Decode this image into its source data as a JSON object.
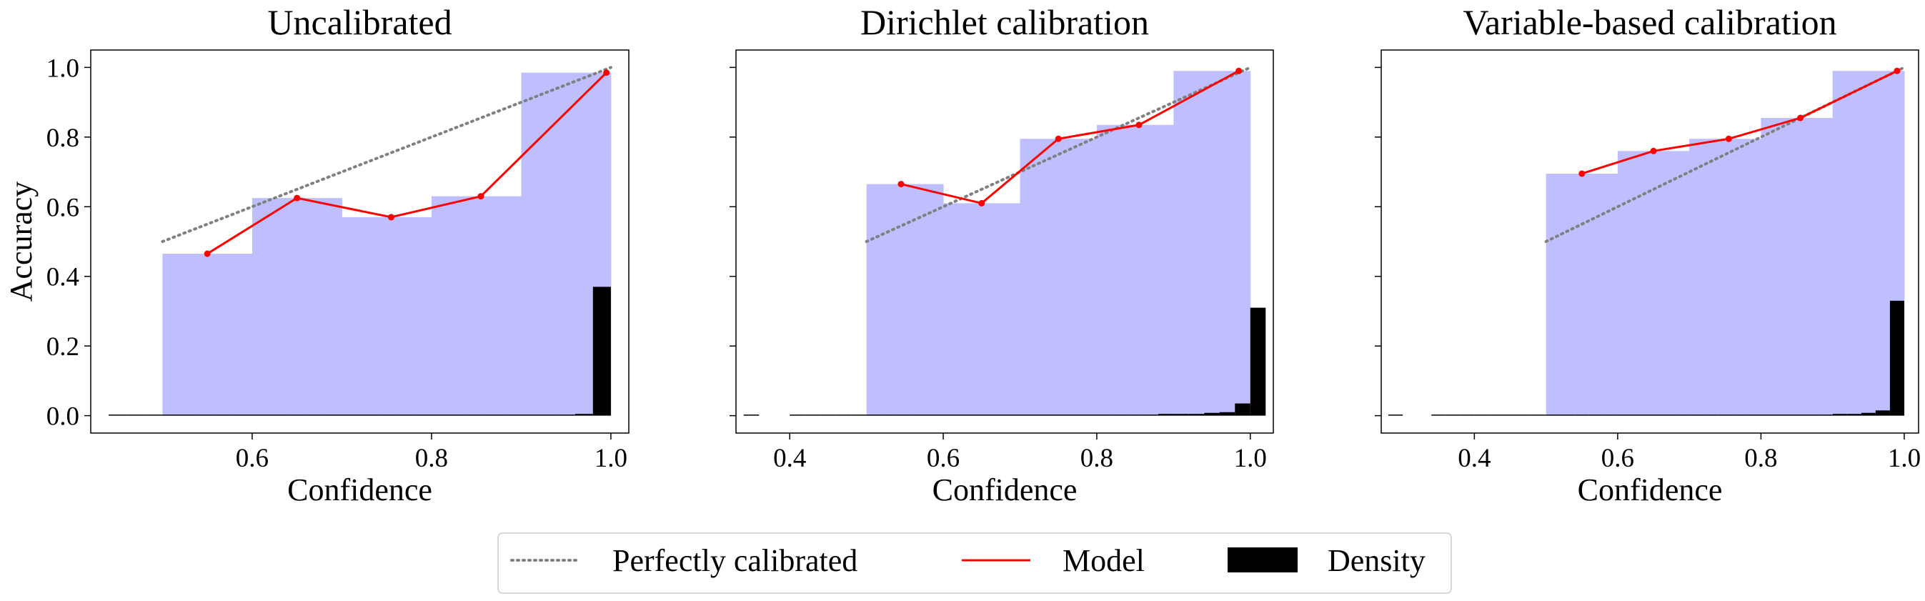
{
  "chart_data": [
    {
      "type": "bar",
      "title": "Uncalibrated",
      "xlabel": "Confidence",
      "ylabel": "Accuracy",
      "xlim": [
        0.42,
        1.02
      ],
      "ylim": [
        -0.05,
        1.05
      ],
      "xticks": [
        0.6,
        0.8,
        1.0
      ],
      "xtick_labels": [
        "0.6",
        "0.8",
        "1.0"
      ],
      "yticks": [
        0.0,
        0.2,
        0.4,
        0.6,
        0.8,
        1.0
      ],
      "ytick_labels": [
        "0.0",
        "0.2",
        "0.4",
        "0.6",
        "0.8",
        "1.0"
      ],
      "show_yticklabels": true,
      "accuracy_bins": {
        "edges": [
          0.5,
          0.6,
          0.7,
          0.8,
          0.9,
          1.0
        ],
        "values": [
          0.465,
          0.625,
          0.57,
          0.63,
          0.985
        ]
      },
      "model": {
        "name": "Model",
        "x": [
          0.55,
          0.65,
          0.755,
          0.855,
          0.995
        ],
        "y": [
          0.465,
          0.625,
          0.57,
          0.63,
          0.985
        ]
      },
      "perfect": {
        "name": "Perfectly calibrated",
        "x": [
          0.5,
          1.0
        ],
        "y": [
          0.5,
          1.0
        ]
      },
      "density": {
        "name": "Density",
        "bin_width": 0.02,
        "start": 0.44,
        "end": 1.0,
        "values": [
          0.003,
          0.003,
          0.003,
          0.003,
          0.003,
          0.003,
          0.003,
          0.003,
          0.003,
          0.003,
          0.003,
          0.003,
          0.003,
          0.003,
          0.003,
          0.003,
          0.003,
          0.003,
          0.003,
          0.003,
          0.003,
          0.003,
          0.003,
          0.003,
          0.003,
          0.003,
          0.005,
          0.37
        ]
      }
    },
    {
      "type": "bar",
      "title": "Dirichlet calibration",
      "xlabel": "Confidence",
      "ylabel": "",
      "xlim": [
        0.33,
        1.03
      ],
      "ylim": [
        -0.05,
        1.05
      ],
      "xticks": [
        0.4,
        0.6,
        0.8,
        1.0
      ],
      "xtick_labels": [
        "0.4",
        "0.6",
        "0.8",
        "1.0"
      ],
      "yticks": [
        0.0,
        0.2,
        0.4,
        0.6,
        0.8,
        1.0
      ],
      "ytick_labels": [],
      "show_yticklabels": false,
      "accuracy_bins": {
        "edges": [
          0.5,
          0.6,
          0.7,
          0.8,
          0.9,
          1.0
        ],
        "values": [
          0.665,
          0.61,
          0.795,
          0.835,
          0.99
        ]
      },
      "model": {
        "name": "Model",
        "x": [
          0.545,
          0.65,
          0.75,
          0.855,
          0.985
        ],
        "y": [
          0.665,
          0.61,
          0.795,
          0.835,
          0.99
        ]
      },
      "perfect": {
        "name": "Perfectly calibrated",
        "x": [
          0.5,
          1.0
        ],
        "y": [
          0.5,
          1.0
        ]
      },
      "density": {
        "name": "Density",
        "bin_width": 0.02,
        "start": 0.34,
        "end": 1.0,
        "values": [
          0.003,
          0.0,
          0.0,
          0.003,
          0.003,
          0.003,
          0.003,
          0.003,
          0.003,
          0.003,
          0.003,
          0.003,
          0.003,
          0.003,
          0.003,
          0.003,
          0.003,
          0.003,
          0.003,
          0.003,
          0.003,
          0.003,
          0.003,
          0.003,
          0.003,
          0.003,
          0.003,
          0.005,
          0.005,
          0.005,
          0.008,
          0.01,
          0.035,
          0.31
        ]
      }
    },
    {
      "type": "bar",
      "title": "Variable-based calibration",
      "xlabel": "Confidence",
      "ylabel": "",
      "xlim": [
        0.27,
        1.02
      ],
      "ylim": [
        -0.05,
        1.05
      ],
      "xticks": [
        0.4,
        0.6,
        0.8,
        1.0
      ],
      "xtick_labels": [
        "0.4",
        "0.6",
        "0.8",
        "1.0"
      ],
      "yticks": [
        0.0,
        0.2,
        0.4,
        0.6,
        0.8,
        1.0
      ],
      "ytick_labels": [],
      "show_yticklabels": false,
      "accuracy_bins": {
        "edges": [
          0.5,
          0.6,
          0.7,
          0.8,
          0.9,
          1.0
        ],
        "values": [
          0.695,
          0.76,
          0.795,
          0.855,
          0.99
        ]
      },
      "model": {
        "name": "Model",
        "x": [
          0.55,
          0.65,
          0.755,
          0.855,
          0.99
        ],
        "y": [
          0.695,
          0.76,
          0.795,
          0.855,
          0.99
        ]
      },
      "perfect": {
        "name": "Perfectly calibrated",
        "x": [
          0.5,
          1.0
        ],
        "y": [
          0.5,
          1.0
        ]
      },
      "density": {
        "name": "Density",
        "bin_width": 0.02,
        "start": 0.28,
        "end": 1.0,
        "values": [
          0.003,
          0.0,
          0.0,
          0.003,
          0.003,
          0.003,
          0.003,
          0.003,
          0.003,
          0.003,
          0.003,
          0.003,
          0.003,
          0.003,
          0.003,
          0.003,
          0.003,
          0.003,
          0.003,
          0.003,
          0.003,
          0.003,
          0.003,
          0.003,
          0.003,
          0.003,
          0.003,
          0.003,
          0.003,
          0.003,
          0.003,
          0.005,
          0.005,
          0.008,
          0.015,
          0.33
        ]
      }
    }
  ],
  "legend": {
    "placement": "bottom-center",
    "items": [
      {
        "label": "Perfectly calibrated",
        "style": "dotted-line"
      },
      {
        "label": "Model",
        "style": "solid-line"
      },
      {
        "label": "Density",
        "style": "patch"
      }
    ]
  },
  "colors": {
    "accuracy_bar": "#bfbfff",
    "model_line": "#ff0000",
    "perfect_line": "#808080",
    "density_bar": "#000000",
    "axes": "#000000"
  }
}
